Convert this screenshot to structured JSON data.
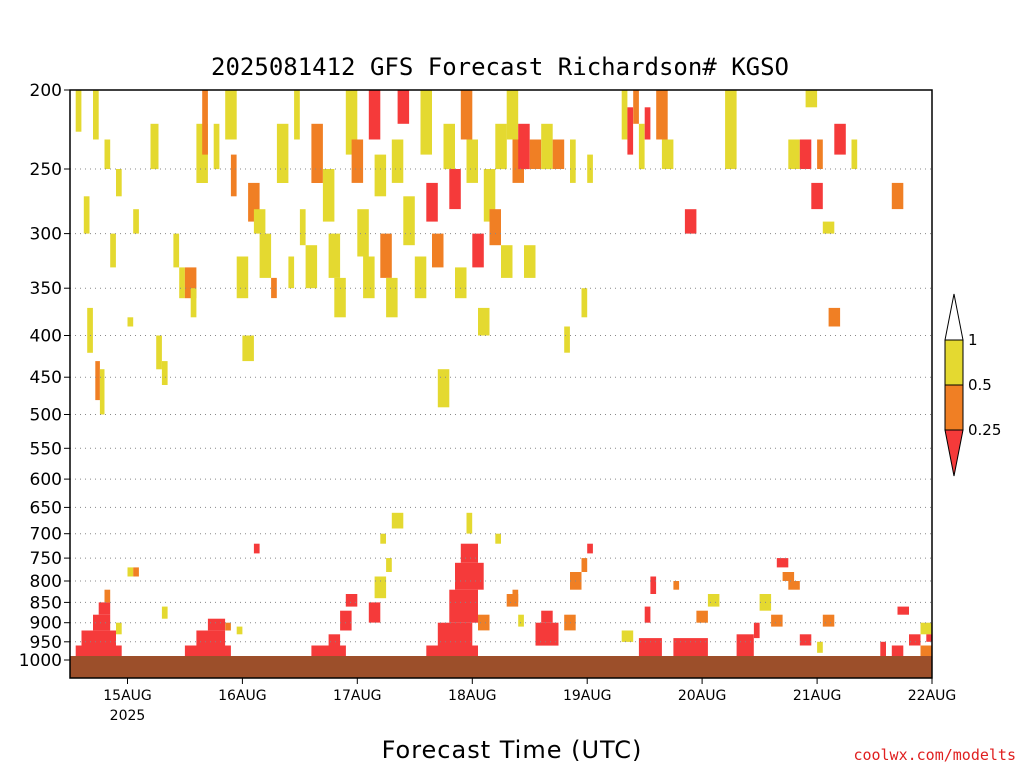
{
  "chart_data": {
    "type": "heatmap",
    "title": "2025081412 GFS Forecast Richardson# KGSO",
    "xlabel": "Forecast Time (UTC)",
    "ylabel": "",
    "x_ticks": [
      {
        "label": "15AUG",
        "sublabel": "2025",
        "day": 1
      },
      {
        "label": "16AUG",
        "sublabel": "",
        "day": 2
      },
      {
        "label": "17AUG",
        "sublabel": "",
        "day": 3
      },
      {
        "label": "18AUG",
        "sublabel": "",
        "day": 4
      },
      {
        "label": "19AUG",
        "sublabel": "",
        "day": 5
      },
      {
        "label": "20AUG",
        "sublabel": "",
        "day": 6
      },
      {
        "label": "21AUG",
        "sublabel": "",
        "day": 7
      },
      {
        "label": "22AUG",
        "sublabel": "",
        "day": 8
      }
    ],
    "xlim_days": [
      0.5,
      8
    ],
    "y_ticks": [
      200,
      250,
      300,
      350,
      400,
      450,
      500,
      550,
      600,
      650,
      700,
      750,
      800,
      850,
      900,
      950,
      1000
    ],
    "ylim_hpa": [
      200,
      1000
    ],
    "y_scale": "log-pressure",
    "grid": true,
    "legend": {
      "placement": "right",
      "labels": [
        "1",
        "0.5",
        "0.25"
      ],
      "bins": [
        {
          "range": "< 0.25",
          "color": "#f53a3a"
        },
        {
          "range": "0.25 - 0.5",
          "color": "#f07f24"
        },
        {
          "range": "0.5 - 1",
          "color": "#e4d930"
        },
        {
          "range": "> 1",
          "color": "#ffffff"
        }
      ]
    },
    "ground": {
      "color": "#9c4f2a"
    },
    "cells": [
      [
        0.55,
        0.6,
        200,
        225,
        2
      ],
      [
        0.62,
        0.67,
        270,
        300,
        2
      ],
      [
        0.7,
        0.75,
        200,
        230,
        2
      ],
      [
        0.65,
        0.7,
        370,
        420,
        2
      ],
      [
        0.72,
        0.76,
        430,
        480,
        1
      ],
      [
        0.76,
        0.8,
        440,
        500,
        2
      ],
      [
        0.8,
        0.85,
        230,
        250,
        2
      ],
      [
        0.85,
        0.9,
        300,
        330,
        2
      ],
      [
        0.9,
        0.95,
        250,
        270,
        2
      ],
      [
        1.0,
        1.05,
        380,
        390,
        2
      ],
      [
        1.2,
        1.27,
        220,
        250,
        2
      ],
      [
        1.05,
        1.1,
        280,
        300,
        2
      ],
      [
        1.25,
        1.3,
        400,
        440,
        2
      ],
      [
        1.3,
        1.35,
        430,
        460,
        2
      ],
      [
        1.4,
        1.45,
        300,
        330,
        2
      ],
      [
        1.45,
        1.5,
        330,
        360,
        2
      ],
      [
        1.5,
        1.6,
        330,
        360,
        1
      ],
      [
        1.55,
        1.6,
        350,
        380,
        2
      ],
      [
        1.6,
        1.7,
        220,
        260,
        2
      ],
      [
        1.65,
        1.7,
        200,
        240,
        1
      ],
      [
        1.75,
        1.8,
        220,
        250,
        2
      ],
      [
        1.85,
        1.95,
        200,
        230,
        2
      ],
      [
        1.9,
        1.95,
        240,
        270,
        1
      ],
      [
        1.95,
        2.05,
        320,
        360,
        2
      ],
      [
        2.0,
        2.1,
        400,
        430,
        2
      ],
      [
        2.05,
        2.15,
        260,
        290,
        1
      ],
      [
        2.1,
        2.2,
        280,
        300,
        2
      ],
      [
        2.15,
        2.25,
        300,
        340,
        2
      ],
      [
        2.25,
        2.3,
        340,
        360,
        1
      ],
      [
        2.3,
        2.4,
        220,
        260,
        2
      ],
      [
        2.4,
        2.45,
        320,
        350,
        2
      ],
      [
        2.45,
        2.5,
        200,
        230,
        2
      ],
      [
        2.5,
        2.55,
        280,
        310,
        2
      ],
      [
        2.55,
        2.65,
        310,
        350,
        2
      ],
      [
        2.6,
        2.7,
        220,
        260,
        1
      ],
      [
        2.7,
        2.8,
        250,
        290,
        2
      ],
      [
        2.75,
        2.85,
        300,
        340,
        2
      ],
      [
        2.8,
        2.9,
        340,
        380,
        2
      ],
      [
        2.9,
        3.0,
        200,
        240,
        2
      ],
      [
        2.95,
        3.05,
        230,
        260,
        1
      ],
      [
        3.0,
        3.1,
        280,
        320,
        2
      ],
      [
        3.05,
        3.15,
        320,
        360,
        2
      ],
      [
        3.1,
        3.2,
        200,
        230,
        0
      ],
      [
        3.15,
        3.25,
        240,
        270,
        2
      ],
      [
        3.2,
        3.3,
        300,
        340,
        1
      ],
      [
        3.25,
        3.35,
        340,
        380,
        2
      ],
      [
        3.3,
        3.4,
        230,
        260,
        2
      ],
      [
        3.35,
        3.45,
        200,
        220,
        0
      ],
      [
        3.4,
        3.5,
        270,
        310,
        2
      ],
      [
        3.5,
        3.6,
        320,
        360,
        2
      ],
      [
        3.55,
        3.65,
        200,
        240,
        2
      ],
      [
        3.6,
        3.7,
        260,
        290,
        0
      ],
      [
        3.65,
        3.75,
        300,
        330,
        1
      ],
      [
        3.7,
        3.8,
        440,
        490,
        2
      ],
      [
        3.75,
        3.85,
        220,
        250,
        2
      ],
      [
        3.8,
        3.9,
        250,
        280,
        0
      ],
      [
        3.85,
        3.95,
        330,
        360,
        2
      ],
      [
        3.9,
        4.0,
        200,
        230,
        1
      ],
      [
        3.95,
        4.05,
        230,
        260,
        2
      ],
      [
        4.0,
        4.1,
        300,
        330,
        0
      ],
      [
        4.05,
        4.15,
        370,
        400,
        2
      ],
      [
        4.1,
        4.2,
        250,
        290,
        2
      ],
      [
        4.15,
        4.25,
        280,
        310,
        1
      ],
      [
        4.2,
        4.3,
        220,
        250,
        2
      ],
      [
        4.25,
        4.35,
        310,
        340,
        2
      ],
      [
        4.3,
        4.4,
        200,
        230,
        2
      ],
      [
        4.35,
        4.45,
        230,
        260,
        1
      ],
      [
        4.4,
        4.5,
        220,
        250,
        0
      ],
      [
        4.45,
        4.55,
        310,
        340,
        2
      ],
      [
        4.5,
        4.6,
        230,
        250,
        1
      ],
      [
        4.6,
        4.7,
        220,
        250,
        2
      ],
      [
        4.7,
        4.8,
        230,
        250,
        1
      ],
      [
        4.8,
        4.85,
        390,
        420,
        2
      ],
      [
        4.85,
        4.9,
        230,
        260,
        2
      ],
      [
        4.95,
        5.0,
        350,
        380,
        2
      ],
      [
        5.0,
        5.05,
        240,
        260,
        2
      ],
      [
        5.3,
        5.35,
        200,
        230,
        2
      ],
      [
        5.35,
        5.4,
        210,
        240,
        0
      ],
      [
        5.4,
        5.45,
        200,
        220,
        1
      ],
      [
        5.45,
        5.5,
        220,
        250,
        2
      ],
      [
        5.5,
        5.55,
        210,
        230,
        0
      ],
      [
        5.6,
        5.7,
        200,
        230,
        1
      ],
      [
        5.65,
        5.75,
        230,
        250,
        2
      ],
      [
        5.85,
        5.95,
        280,
        300,
        0
      ],
      [
        6.2,
        6.3,
        200,
        250,
        2
      ],
      [
        6.75,
        6.85,
        230,
        250,
        2
      ],
      [
        6.85,
        6.95,
        230,
        250,
        0
      ],
      [
        6.9,
        7.0,
        200,
        210,
        2
      ],
      [
        6.95,
        7.05,
        260,
        280,
        0
      ],
      [
        7.05,
        7.15,
        290,
        300,
        2
      ],
      [
        7.0,
        7.05,
        230,
        250,
        1
      ],
      [
        7.1,
        7.2,
        370,
        390,
        1
      ],
      [
        7.15,
        7.25,
        220,
        240,
        0
      ],
      [
        7.3,
        7.35,
        230,
        250,
        2
      ],
      [
        7.65,
        7.75,
        260,
        280,
        1
      ],
      [
        0.55,
        0.95,
        960,
        990,
        0
      ],
      [
        0.6,
        0.9,
        920,
        960,
        0
      ],
      [
        0.7,
        0.85,
        880,
        920,
        0
      ],
      [
        0.75,
        0.85,
        850,
        880,
        0
      ],
      [
        0.8,
        0.85,
        820,
        850,
        1
      ],
      [
        0.9,
        0.95,
        900,
        930,
        2
      ],
      [
        1.0,
        1.05,
        770,
        790,
        2
      ],
      [
        1.05,
        1.1,
        770,
        790,
        1
      ],
      [
        1.3,
        1.35,
        860,
        890,
        2
      ],
      [
        1.5,
        1.9,
        960,
        990,
        0
      ],
      [
        1.6,
        1.85,
        920,
        960,
        0
      ],
      [
        1.7,
        1.85,
        890,
        920,
        0
      ],
      [
        1.85,
        1.9,
        900,
        920,
        1
      ],
      [
        1.95,
        2.0,
        910,
        930,
        2
      ],
      [
        2.1,
        2.15,
        720,
        740,
        0
      ],
      [
        2.6,
        2.9,
        960,
        990,
        0
      ],
      [
        2.75,
        2.85,
        930,
        960,
        0
      ],
      [
        2.85,
        2.95,
        870,
        920,
        0
      ],
      [
        2.9,
        3.0,
        830,
        860,
        0
      ],
      [
        3.1,
        3.2,
        850,
        900,
        0
      ],
      [
        3.15,
        3.25,
        790,
        840,
        2
      ],
      [
        3.2,
        3.25,
        700,
        720,
        2
      ],
      [
        3.25,
        3.3,
        750,
        780,
        2
      ],
      [
        3.3,
        3.4,
        660,
        690,
        2
      ],
      [
        3.6,
        4.05,
        960,
        990,
        0
      ],
      [
        3.7,
        4.0,
        900,
        960,
        0
      ],
      [
        3.8,
        4.05,
        820,
        900,
        0
      ],
      [
        3.85,
        4.1,
        760,
        820,
        0
      ],
      [
        3.9,
        4.05,
        720,
        760,
        0
      ],
      [
        4.05,
        4.15,
        880,
        920,
        1
      ],
      [
        3.95,
        4.0,
        660,
        700,
        2
      ],
      [
        4.2,
        4.25,
        700,
        720,
        2
      ],
      [
        4.3,
        4.4,
        830,
        860,
        1
      ],
      [
        4.4,
        4.45,
        880,
        910,
        2
      ],
      [
        4.35,
        4.4,
        820,
        850,
        1
      ],
      [
        4.55,
        4.75,
        900,
        960,
        0
      ],
      [
        4.6,
        4.7,
        870,
        900,
        0
      ],
      [
        4.8,
        4.9,
        880,
        920,
        1
      ],
      [
        4.85,
        4.95,
        780,
        820,
        1
      ],
      [
        4.95,
        5.0,
        750,
        780,
        1
      ],
      [
        5.0,
        5.05,
        720,
        740,
        0
      ],
      [
        5.3,
        5.4,
        920,
        950,
        2
      ],
      [
        5.45,
        5.65,
        940,
        990,
        0
      ],
      [
        5.5,
        5.55,
        860,
        900,
        0
      ],
      [
        5.55,
        5.6,
        790,
        830,
        0
      ],
      [
        5.75,
        5.8,
        800,
        820,
        1
      ],
      [
        5.95,
        6.05,
        870,
        900,
        1
      ],
      [
        6.05,
        6.15,
        830,
        860,
        2
      ],
      [
        5.75,
        6.05,
        940,
        990,
        0
      ],
      [
        6.3,
        6.45,
        930,
        990,
        0
      ],
      [
        6.45,
        6.5,
        900,
        940,
        0
      ],
      [
        6.5,
        6.6,
        830,
        870,
        2
      ],
      [
        6.6,
        6.7,
        880,
        910,
        1
      ],
      [
        6.7,
        6.8,
        780,
        800,
        1
      ],
      [
        6.65,
        6.75,
        750,
        770,
        0
      ],
      [
        6.75,
        6.85,
        800,
        820,
        1
      ],
      [
        6.85,
        6.95,
        930,
        960,
        0
      ],
      [
        7.0,
        7.05,
        950,
        980,
        2
      ],
      [
        7.05,
        7.15,
        880,
        910,
        1
      ],
      [
        7.55,
        7.6,
        950,
        990,
        0
      ],
      [
        7.65,
        7.75,
        960,
        990,
        0
      ],
      [
        7.7,
        7.8,
        860,
        880,
        0
      ],
      [
        7.8,
        7.9,
        930,
        960,
        0
      ],
      [
        7.9,
        8.0,
        900,
        930,
        2
      ],
      [
        7.9,
        8.0,
        960,
        990,
        1
      ],
      [
        7.95,
        8.0,
        930,
        950,
        0
      ]
    ]
  }
}
